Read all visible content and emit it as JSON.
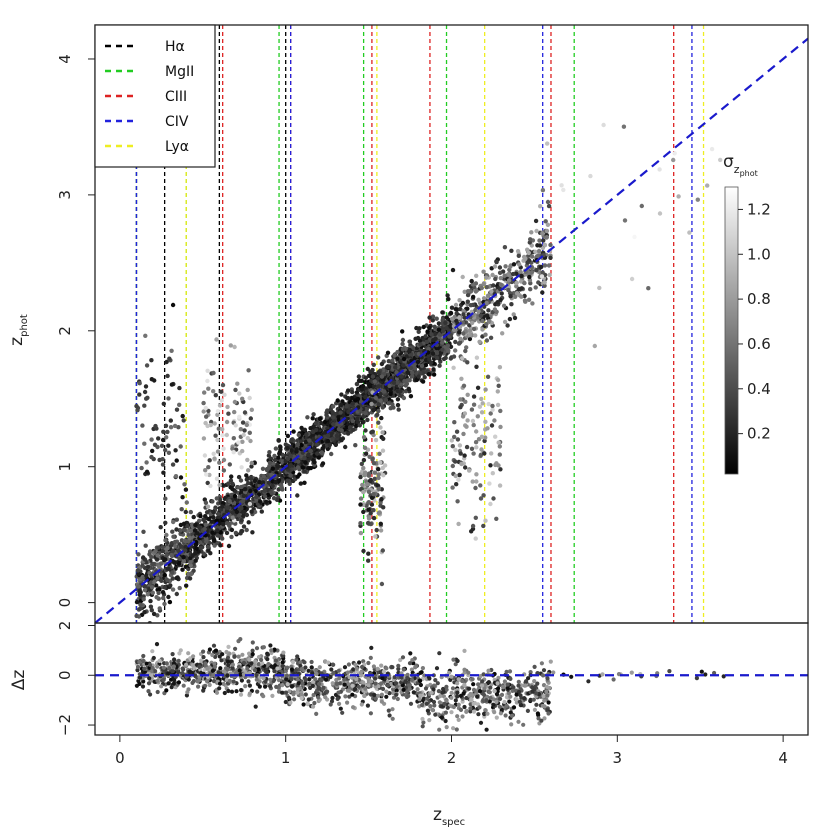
{
  "chart_data": [
    {
      "type": "scatter",
      "panel": "main",
      "xlabel_main": "z",
      "xlabel_sub": "spec",
      "ylabel_main": "z",
      "ylabel_sub": "phot",
      "xlim": [
        -0.15,
        4.15
      ],
      "ylim": [
        -0.15,
        4.25
      ],
      "x_ticks": [
        "0",
        "1",
        "2",
        "3",
        "4"
      ],
      "y_ticks": [
        "0",
        "1",
        "2",
        "3",
        "4"
      ],
      "reference_line": {
        "slope": 1,
        "intercept": 0,
        "color": "#1a1acc",
        "style": "dashed"
      },
      "legend": {
        "position": "top-left",
        "entries": [
          {
            "label": "Hα",
            "color": "#000000"
          },
          {
            "label": "MgII",
            "color": "#22cc22"
          },
          {
            "label": "CIII",
            "color": "#dd2222"
          },
          {
            "label": "CIV",
            "color": "#2222dd"
          },
          {
            "label": "Lyα",
            "color": "#eeee22"
          }
        ]
      },
      "vertical_lines": [
        {
          "line": "Hα",
          "color": "#000000",
          "x": [
            0.1,
            0.27,
            0.6,
            1.0
          ]
        },
        {
          "line": "MgII",
          "color": "#22cc22",
          "x": [
            0.1,
            0.4,
            0.96,
            1.47,
            1.97,
            2.74
          ]
        },
        {
          "line": "CIII",
          "color": "#dd2222",
          "x": [
            0.62,
            1.03,
            1.52,
            1.87,
            2.6,
            3.34
          ]
        },
        {
          "line": "CIV",
          "color": "#2222dd",
          "x": [
            0.1,
            1.03,
            2.55,
            3.45
          ]
        },
        {
          "line": "Lyα",
          "color": "#eeee22",
          "x": [
            0.4,
            1.55,
            2.2,
            3.52
          ]
        }
      ],
      "colorbar": {
        "title_main": "σ",
        "title_sub": "z",
        "title_subsub": "phot",
        "ticks": [
          "0.2",
          "0.4",
          "0.6",
          "0.8",
          "1.0",
          "1.2"
        ],
        "tick_values": [
          0.2,
          0.4,
          0.6,
          0.8,
          1.0,
          1.2
        ],
        "range": [
          0.02,
          1.3
        ]
      },
      "point_clusters": [
        {
          "x_range": [
            0.1,
            0.45
          ],
          "y_center": "x",
          "spread": 0.12,
          "sigma_range": [
            0.05,
            0.6
          ],
          "n": 420
        },
        {
          "x_range": [
            0.45,
            1.0
          ],
          "y_center": "x",
          "spread": 0.09,
          "sigma_range": [
            0.05,
            0.5
          ],
          "n": 700
        },
        {
          "x_range": [
            1.0,
            1.5
          ],
          "y_center": "x",
          "spread": 0.08,
          "sigma_range": [
            0.05,
            0.45
          ],
          "n": 900
        },
        {
          "x_range": [
            1.5,
            2.0
          ],
          "y_center": "x",
          "spread": 0.09,
          "sigma_range": [
            0.05,
            0.5
          ],
          "n": 900
        },
        {
          "x_range": [
            2.0,
            2.6
          ],
          "y_center": "x",
          "spread": 0.12,
          "sigma_range": [
            0.1,
            0.9
          ],
          "n": 420
        },
        {
          "x_range": [
            0.1,
            0.4
          ],
          "y_center": 1.3,
          "spread": 0.3,
          "sigma_range": [
            0.05,
            0.6
          ],
          "n": 80
        },
        {
          "x_range": [
            0.5,
            0.8
          ],
          "y_center": 1.3,
          "spread": 0.25,
          "sigma_range": [
            0.3,
            1.2
          ],
          "n": 110
        },
        {
          "x_range": [
            1.45,
            1.6
          ],
          "y_center": 0.85,
          "spread": 0.25,
          "sigma_range": [
            0.1,
            1.0
          ],
          "n": 140
        },
        {
          "x_range": [
            2.0,
            2.3
          ],
          "y_center": 1.2,
          "spread": 0.3,
          "sigma_range": [
            0.2,
            1.1
          ],
          "n": 130
        },
        {
          "x_range": [
            2.5,
            3.7
          ],
          "y_center": 2.9,
          "spread": 0.3,
          "sigma_range": [
            0.5,
            1.3
          ],
          "n": 30
        }
      ]
    },
    {
      "type": "scatter",
      "panel": "residual",
      "ylabel": "Δz",
      "xlim": [
        -0.15,
        4.15
      ],
      "ylim": [
        -2.4,
        2.1
      ],
      "y_ticks": [
        "−2",
        "0",
        "2"
      ],
      "y_tick_values": [
        -2,
        0,
        2
      ],
      "reference_line": {
        "y": 0,
        "color": "#1a1acc",
        "style": "dashed"
      },
      "point_clusters": [
        {
          "x_range": [
            0.1,
            0.5
          ],
          "y_center": 0.1,
          "spread": 0.35,
          "n": 260
        },
        {
          "x_range": [
            0.5,
            1.0
          ],
          "y_center": 0.2,
          "spread": 0.45,
          "n": 360
        },
        {
          "x_range": [
            1.0,
            1.8
          ],
          "y_center": -0.3,
          "spread": 0.45,
          "n": 520
        },
        {
          "x_range": [
            1.8,
            2.6
          ],
          "y_center": -0.8,
          "spread": 0.55,
          "n": 460
        },
        {
          "x_range": [
            2.6,
            3.7
          ],
          "y_center": 0.0,
          "spread": 0.1,
          "n": 20
        }
      ]
    }
  ]
}
